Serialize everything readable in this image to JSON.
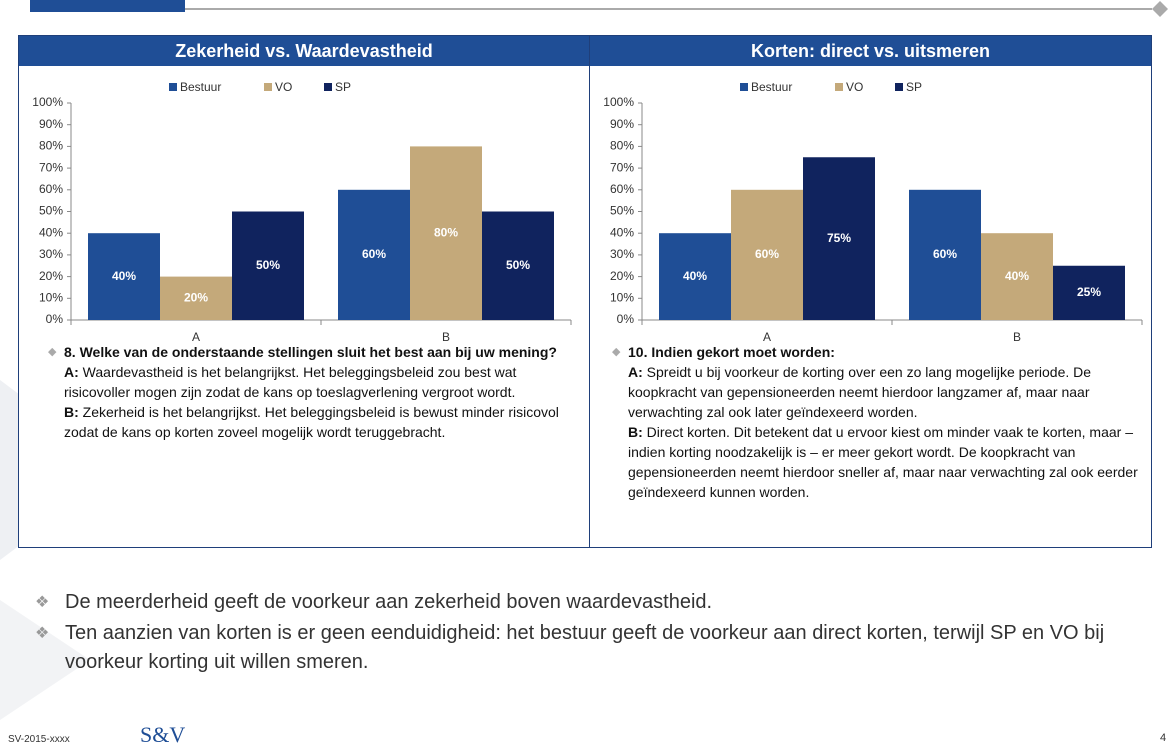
{
  "chart_data": [
    {
      "type": "bar",
      "title": "Zekerheid vs. Waardevastheid",
      "categories": [
        "A",
        "B"
      ],
      "series": [
        {
          "name": "Bestuur",
          "color": "#1f4e96",
          "values": [
            40,
            60
          ],
          "value_labels": [
            "40%",
            "60%"
          ]
        },
        {
          "name": "VO",
          "color": "#c4a97a",
          "values": [
            20,
            80
          ],
          "value_labels": [
            "20%",
            "80%"
          ]
        },
        {
          "name": "SP",
          "color": "#10235e",
          "values": [
            50,
            50
          ],
          "value_labels": [
            "50%",
            "50%"
          ]
        }
      ],
      "ylim": [
        0,
        100
      ],
      "yticks": [
        {
          "value": 0,
          "label": "0%"
        },
        {
          "value": 10,
          "label": "10%"
        },
        {
          "value": 20,
          "label": "20%"
        },
        {
          "value": 30,
          "label": "30%"
        },
        {
          "value": 40,
          "label": "40%"
        },
        {
          "value": 50,
          "label": "50%"
        },
        {
          "value": 60,
          "label": "60%"
        },
        {
          "value": 70,
          "label": "70%"
        },
        {
          "value": 80,
          "label": "80%"
        },
        {
          "value": 90,
          "label": "90%"
        },
        {
          "value": 100,
          "label": "100%"
        }
      ],
      "grid": false,
      "legend": "top"
    },
    {
      "type": "bar",
      "title": "Korten: direct vs. uitsmeren",
      "categories": [
        "A",
        "B"
      ],
      "series": [
        {
          "name": "Bestuur",
          "color": "#1f4e96",
          "values": [
            40,
            60
          ],
          "value_labels": [
            "40%",
            "60%"
          ]
        },
        {
          "name": "VO",
          "color": "#c4a97a",
          "values": [
            60,
            40
          ],
          "value_labels": [
            "60%",
            "40%"
          ]
        },
        {
          "name": "SP",
          "color": "#10235e",
          "values": [
            75,
            25
          ],
          "value_labels": [
            "75%",
            "25%"
          ]
        }
      ],
      "ylim": [
        0,
        100
      ],
      "yticks": [
        {
          "value": 0,
          "label": "0%"
        },
        {
          "value": 10,
          "label": "10%"
        },
        {
          "value": 20,
          "label": "20%"
        },
        {
          "value": 30,
          "label": "30%"
        },
        {
          "value": 40,
          "label": "40%"
        },
        {
          "value": 50,
          "label": "50%"
        },
        {
          "value": 60,
          "label": "60%"
        },
        {
          "value": 70,
          "label": "70%"
        },
        {
          "value": 80,
          "label": "80%"
        },
        {
          "value": 90,
          "label": "90%"
        },
        {
          "value": 100,
          "label": "100%"
        }
      ],
      "grid": false,
      "legend": "top"
    }
  ],
  "questions": [
    {
      "title": "8. Welke van de onderstaande stellingen sluit het best aan bij uw mening?",
      "a_label": "A:",
      "a_text": "Waardevastheid is het belangrijkst. Het beleggingsbeleid zou best wat risicovoller mogen zijn zodat de kans op toeslagverlening vergroot wordt.",
      "b_label": "B:",
      "b_text": "Zekerheid is het belangrijkst. Het beleggingsbeleid is bewust minder risicovol zodat de kans op korten zoveel mogelijk wordt teruggebracht."
    },
    {
      "title": "10. Indien gekort moet worden:",
      "a_label": "A:",
      "a_text": "Spreidt u bij voorkeur de korting over een zo lang mogelijke periode. De koopkracht van gepensioneerden neemt hierdoor langzamer af, maar naar verwachting zal ook later geïndexeerd worden.",
      "b_label": "B:",
      "b_text": "Direct korten. Dit betekent dat u ervoor kiest om minder vaak te korten, maar –indien korting noodzakelijk is – er meer gekort wordt. De koopkracht van gepensioneerden neemt hierdoor sneller af, maar naar verwachting zal ook eerder geïndexeerd kunnen worden."
    }
  ],
  "conclusions": [
    "De meerderheid geeft de voorkeur aan zekerheid boven waardevastheid.",
    "Ten aanzien van korten is er geen eenduidigheid: het bestuur geeft de voorkeur aan direct korten, terwijl SP en VO bij voorkeur korting uit willen smeren."
  ],
  "footer": {
    "code": "SV-2015-xxxx",
    "logo": "S&V",
    "page_number": "4"
  }
}
